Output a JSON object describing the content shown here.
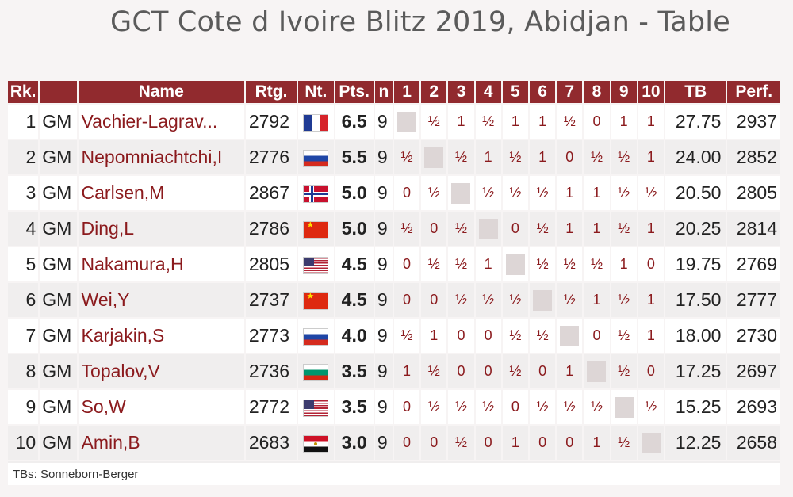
{
  "title": "GCT Cote d Ivoire Blitz 2019, Abidjan - Table",
  "headers": {
    "rank": "Rk.",
    "title": "",
    "name": "Name",
    "rating": "Rtg.",
    "nation": "Nt.",
    "points": "Pts.",
    "games": "n",
    "rounds": [
      "1",
      "2",
      "3",
      "4",
      "5",
      "6",
      "7",
      "8",
      "9",
      "10"
    ],
    "tb": "TB",
    "perf": "Perf."
  },
  "rows": [
    {
      "rank": "1",
      "title": "GM",
      "name": "Vachier-Lagrav...",
      "rating": "2792",
      "flag": "fr",
      "points": "6.5",
      "games": "9",
      "results": [
        "",
        "½",
        "1",
        "½",
        "1",
        "1",
        "½",
        "0",
        "1",
        "1"
      ],
      "tb": "27.75",
      "perf": "2937"
    },
    {
      "rank": "2",
      "title": "GM",
      "name": "Nepomniachtchi,I",
      "rating": "2776",
      "flag": "ru",
      "points": "5.5",
      "games": "9",
      "results": [
        "½",
        "",
        "½",
        "1",
        "½",
        "1",
        "0",
        "½",
        "½",
        "1"
      ],
      "tb": "24.00",
      "perf": "2852"
    },
    {
      "rank": "3",
      "title": "GM",
      "name": "Carlsen,M",
      "rating": "2867",
      "flag": "no",
      "points": "5.0",
      "games": "9",
      "results": [
        "0",
        "½",
        "",
        "½",
        "½",
        "½",
        "1",
        "1",
        "½",
        "½"
      ],
      "tb": "20.50",
      "perf": "2805"
    },
    {
      "rank": "4",
      "title": "GM",
      "name": "Ding,L",
      "rating": "2786",
      "flag": "cn",
      "points": "5.0",
      "games": "9",
      "results": [
        "½",
        "0",
        "½",
        "",
        "0",
        "½",
        "1",
        "1",
        "½",
        "1"
      ],
      "tb": "20.25",
      "perf": "2814"
    },
    {
      "rank": "5",
      "title": "GM",
      "name": "Nakamura,H",
      "rating": "2805",
      "flag": "us",
      "points": "4.5",
      "games": "9",
      "results": [
        "0",
        "½",
        "½",
        "1",
        "",
        "½",
        "½",
        "½",
        "1",
        "0"
      ],
      "tb": "19.75",
      "perf": "2769"
    },
    {
      "rank": "6",
      "title": "GM",
      "name": "Wei,Y",
      "rating": "2737",
      "flag": "cn",
      "points": "4.5",
      "games": "9",
      "results": [
        "0",
        "0",
        "½",
        "½",
        "½",
        "",
        "½",
        "1",
        "½",
        "1"
      ],
      "tb": "17.50",
      "perf": "2777"
    },
    {
      "rank": "7",
      "title": "GM",
      "name": "Karjakin,S",
      "rating": "2773",
      "flag": "ru",
      "points": "4.0",
      "games": "9",
      "results": [
        "½",
        "1",
        "0",
        "0",
        "½",
        "½",
        "",
        "0",
        "½",
        "1"
      ],
      "tb": "18.00",
      "perf": "2730"
    },
    {
      "rank": "8",
      "title": "GM",
      "name": "Topalov,V",
      "rating": "2736",
      "flag": "bg",
      "points": "3.5",
      "games": "9",
      "results": [
        "1",
        "½",
        "0",
        "0",
        "½",
        "0",
        "1",
        "",
        "½",
        "0"
      ],
      "tb": "17.25",
      "perf": "2697"
    },
    {
      "rank": "9",
      "title": "GM",
      "name": "So,W",
      "rating": "2772",
      "flag": "us",
      "points": "3.5",
      "games": "9",
      "results": [
        "0",
        "½",
        "½",
        "½",
        "0",
        "½",
        "½",
        "½",
        "",
        "½"
      ],
      "tb": "15.25",
      "perf": "2693"
    },
    {
      "rank": "10",
      "title": "GM",
      "name": "Amin,B",
      "rating": "2683",
      "flag": "eg",
      "points": "3.0",
      "games": "9",
      "results": [
        "0",
        "0",
        "½",
        "0",
        "1",
        "0",
        "0",
        "1",
        "½",
        ""
      ],
      "tb": "12.25",
      "perf": "2658"
    }
  ],
  "footer": "TBs: Sonneborn-Berger",
  "colors": {
    "header_bg": "#912a2e",
    "name_text": "#8b1a1d",
    "title_text": "#5b5b5b"
  }
}
